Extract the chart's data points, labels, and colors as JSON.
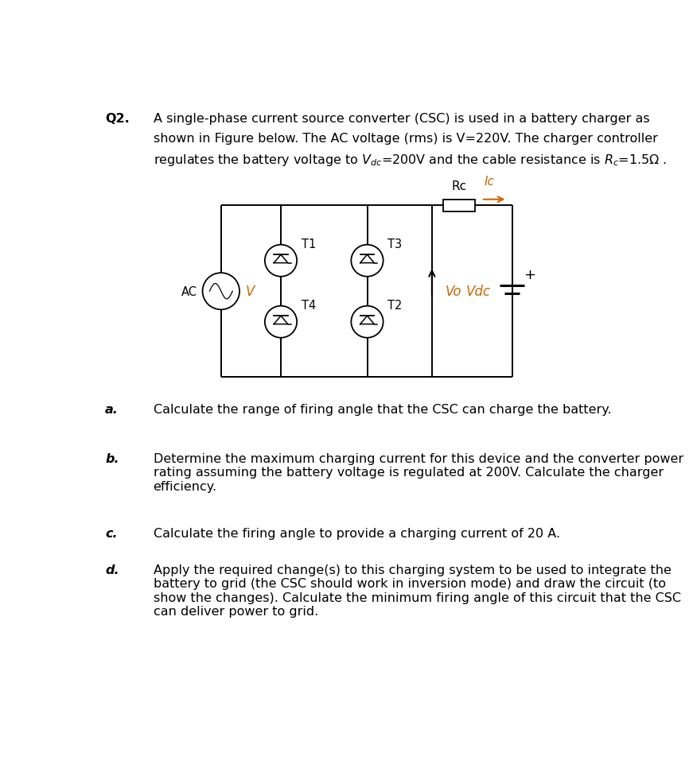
{
  "bg_color": "#ffffff",
  "text_color": "#000000",
  "orange_color": "#cc6600",
  "line_color": "#000000",
  "fig_width": 8.71,
  "fig_height": 9.62,
  "q2_label": "Q2.",
  "part_a_label": "a.",
  "part_a_text": "Calculate the range of firing angle that the CSC can charge the battery.",
  "part_b_label": "b.",
  "part_b_text": "Determine the maximum charging current for this device and the converter power\nrating assuming the battery voltage is regulated at 200V. Calculate the charger\nefficiency.",
  "part_c_label": "c.",
  "part_c_text": "Calculate the firing angle to provide a charging current of 20 A.",
  "part_d_label": "d.",
  "part_d_text": "Apply the required change(s) to this charging system to be used to integrate the\nbattery to grid (the CSC should work in inversion mode) and draw the circuit (to\nshow the changes). Calculate the minimum firing angle of this circuit that the CSC\ncan deliver power to grid."
}
